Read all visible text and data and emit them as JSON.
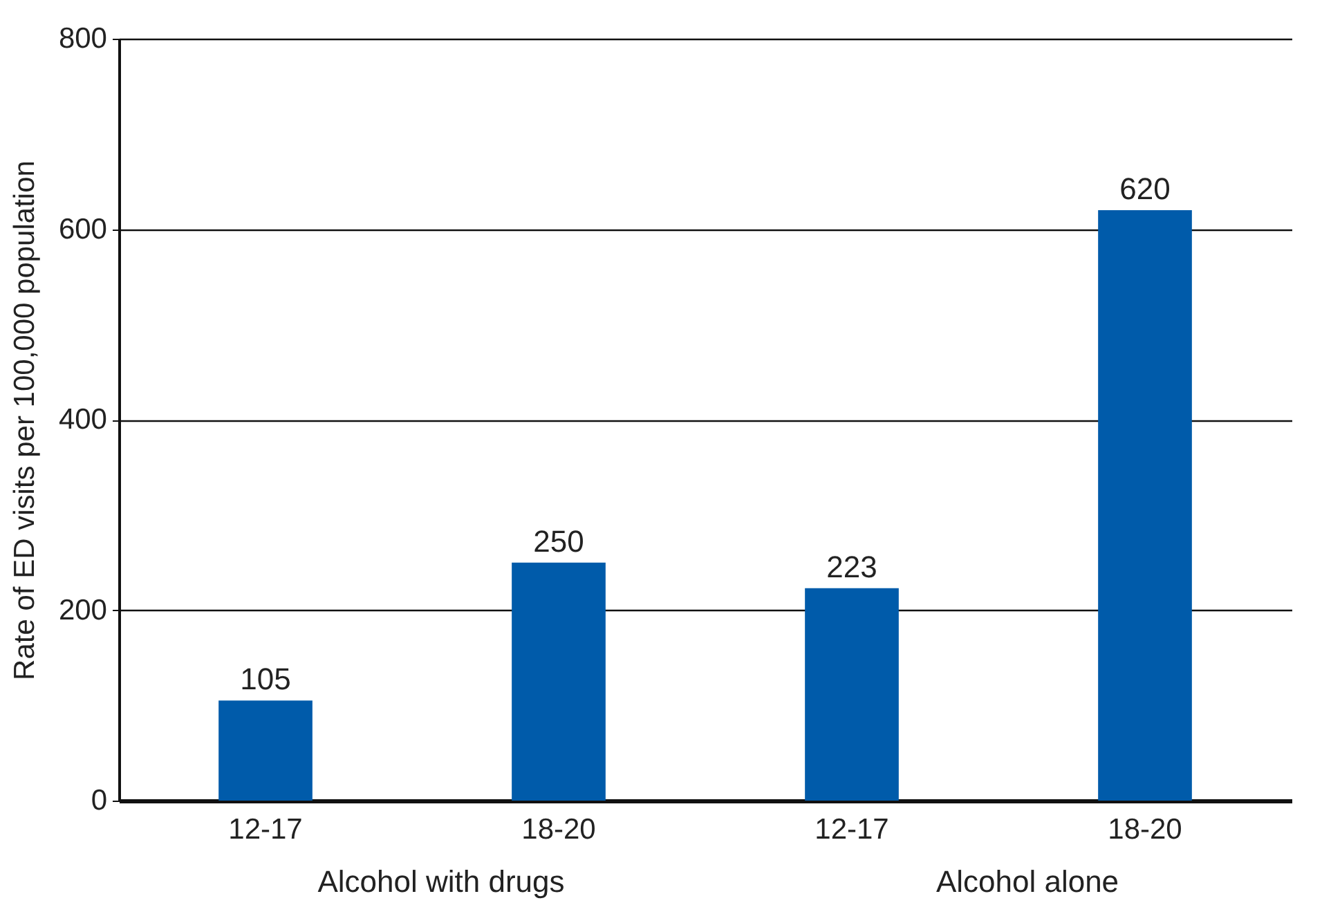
{
  "chart_data": {
    "type": "bar",
    "ylabel": "Rate of ED visits per 100,000 population",
    "categories": [
      "12-17",
      "18-20",
      "12-17",
      "18-20"
    ],
    "values": [
      105,
      250,
      223,
      620
    ],
    "color": "#005baa",
    "ylim": [
      0,
      800
    ],
    "yticks": [
      0,
      200,
      400,
      600,
      800
    ],
    "grid": "y",
    "data_labels": true,
    "annotations": [
      "Alcohol with drugs",
      "Alcohol alone"
    ]
  }
}
